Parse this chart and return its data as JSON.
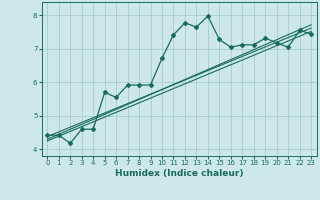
{
  "title": "",
  "xlabel": "Humidex (Indice chaleur)",
  "ylabel": "",
  "bg_color": "#cce8e8",
  "grid_color": "#aacccc",
  "line_color": "#1a6b5a",
  "xlim": [
    -0.5,
    23.5
  ],
  "ylim": [
    3.8,
    8.4
  ],
  "yticks": [
    4,
    5,
    6,
    7,
    8
  ],
  "xticks": [
    0,
    1,
    2,
    3,
    4,
    5,
    6,
    7,
    8,
    9,
    10,
    11,
    12,
    13,
    14,
    15,
    16,
    17,
    18,
    19,
    20,
    21,
    22,
    23
  ],
  "main_x": [
    0,
    1,
    2,
    3,
    4,
    5,
    6,
    7,
    8,
    9,
    10,
    11,
    12,
    13,
    14,
    15,
    16,
    17,
    18,
    19,
    20,
    21,
    22,
    23
  ],
  "main_y": [
    4.42,
    4.42,
    4.18,
    4.6,
    4.6,
    5.7,
    5.55,
    5.92,
    5.92,
    5.92,
    6.72,
    7.42,
    7.78,
    7.65,
    7.98,
    7.28,
    7.05,
    7.12,
    7.12,
    7.32,
    7.18,
    7.05,
    7.55,
    7.45
  ],
  "line1_x": [
    0,
    23
  ],
  "line1_y": [
    4.38,
    7.62
  ],
  "line2_x": [
    0,
    23
  ],
  "line2_y": [
    4.3,
    7.72
  ],
  "line3_x": [
    0,
    23
  ],
  "line3_y": [
    4.25,
    7.52
  ]
}
